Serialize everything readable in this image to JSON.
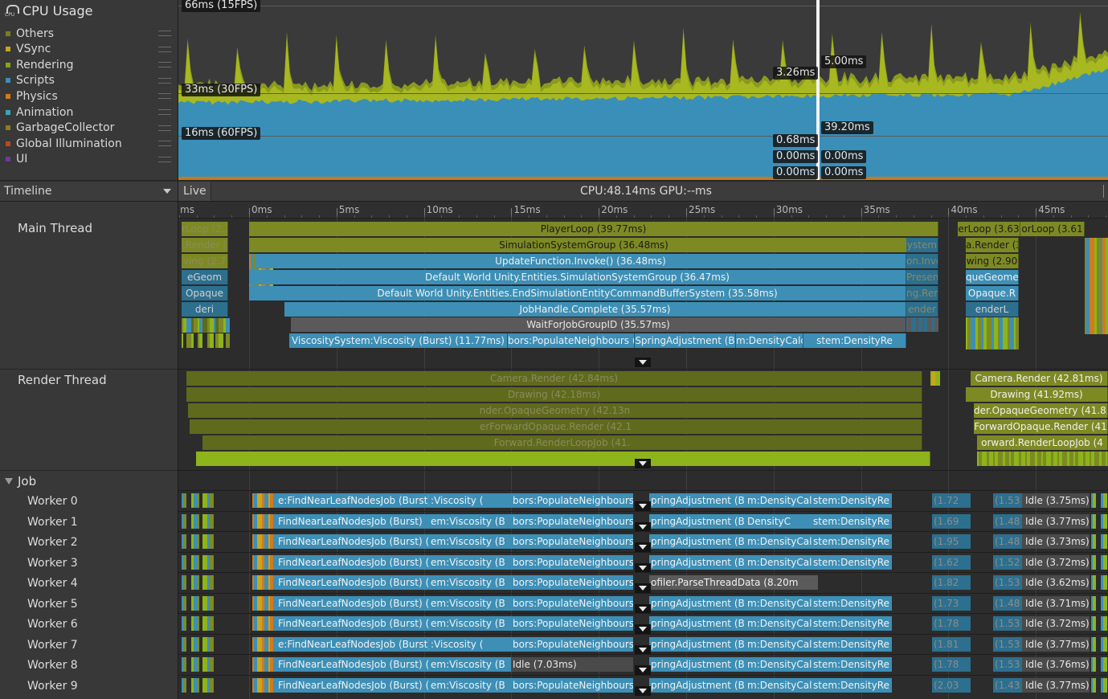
{
  "legend": {
    "title": "CPU Usage",
    "items": [
      {
        "label": "Others",
        "color": "#7b7f1e"
      },
      {
        "label": "VSync",
        "color": "#c9a51c"
      },
      {
        "label": "Rendering",
        "color": "#82a61a"
      },
      {
        "label": "Scripts",
        "color": "#3a8fb8"
      },
      {
        "label": "Physics",
        "color": "#d27a1c"
      },
      {
        "label": "Animation",
        "color": "#3aa5b8"
      },
      {
        "label": "GarbageCollector",
        "color": "#8a7e20"
      },
      {
        "label": "Global Illumination",
        "color": "#b84a1c"
      },
      {
        "label": "UI",
        "color": "#6a3aa0"
      }
    ]
  },
  "chart": {
    "line_66": "66ms (15FPS)",
    "line_33": "33ms (30FPS)",
    "line_16": "16ms (60FPS)",
    "markers": [
      "3.26ms",
      "5.00ms",
      "39.20ms",
      "0.68ms",
      "0.00ms",
      "0.00ms",
      "0.00ms",
      "0.00ms"
    ]
  },
  "toolbar": {
    "view_mode": "Timeline",
    "live": "Live",
    "cpu_gpu": "CPU:48.14ms   GPU:--ms"
  },
  "ruler": {
    "labels": [
      "ms",
      "0ms",
      "5ms",
      "10ms",
      "15ms",
      "20ms",
      "25ms",
      "30ms",
      "35ms",
      "40ms",
      "45ms"
    ]
  },
  "threads": {
    "main": "Main Thread",
    "render": "Render Thread",
    "job": "Job",
    "workers": [
      "Worker 0",
      "Worker 1",
      "Worker 2",
      "Worker 3",
      "Worker 4",
      "Worker 5",
      "Worker 6",
      "Worker 7",
      "Worker 8",
      "Worker 9"
    ]
  },
  "main_blocks": {
    "left": [
      "rLoop (2.7",
      ".Render (",
      "ving (2.7",
      "eGeom",
      "Opaque",
      "deri"
    ],
    "center": [
      "PlayerLoop (39.77ms)",
      "SimulationSystemGroup (36.48ms)",
      "UpdateFunction.Invoke() (36.48ms)",
      "Default World Unity.Entities.SimulationSystemGroup (36.47ms)",
      "Default World Unity.Entities.EndSimulationEntityCommandBufferSystem (35.58ms)",
      "JobHandle.Complete (35.57ms)",
      "WaitForJobGroupID (35.57ms)"
    ],
    "row8": [
      "ViscositySystem:Viscosity (Burst) (11.77ms)",
      "bors:PopulateNeighbours (",
      "SpringAdjustment (B",
      "m:DensityCalc",
      "stem:DensityRe"
    ],
    "mid_right": [
      "ystem",
      "on.Invo",
      "Presen",
      "ng.Ren",
      "ender"
    ],
    "right1": [
      "erLoop (3.63",
      "orLoop (3.61"
    ],
    "right": [
      "a.Render (3.5",
      "wing (2.90",
      "queGeome",
      "Opaque.R",
      "enderL"
    ]
  },
  "render_blocks": {
    "left": [
      "Camera.Render (42.84ms)",
      "Drawing (42.18ms)",
      "nder.OpaqueGeometry (42.13n",
      "erForwardOpaque.Render (42.1",
      "Forward.RenderLoopJob (41."
    ],
    "right": [
      "Camera.Render (42.81ms)",
      "Drawing (41.92ms)",
      "der.OpaqueGeometry (41.83",
      "ForwardOpaque.Render (41",
      "orward.RenderLoopJob (4"
    ]
  },
  "worker_rows": [
    {
      "a": "e:FindNearLeafNodesJob (Burst) (9.1",
      "b": ":Viscosity (",
      "c": "bors:PopulateNeighbours (",
      "d": "pringAdjustment (B",
      "e": "m:DensityCalc",
      "f": "stem:DensityRe",
      "g": "(1.72",
      "h": "(1.53",
      "idle": "Idle (3.75ms)"
    },
    {
      "a": "FindNearLeafNodesJob (Burst)",
      "b": "em:Viscosity (B",
      "c": "bors:PopulateNeighbours (",
      "d": "pringAdjustment (B",
      "e": "DensityC",
      "f": "stem:DensityRe",
      "g": "(1.69",
      "h": "(1.48",
      "idle": "Idle (3.77ms)"
    },
    {
      "a": "FindNearLeafNodesJob (Burst) (",
      "b": "em:Viscosity (B",
      "c": "bors:PopulateNeighbours (",
      "d": "pringAdjustment (B",
      "e": "m:DensityCalc",
      "f": "stem:DensityRe",
      "g": "(1.95",
      "h": "(1.48",
      "idle": "Idle (3.73ms)"
    },
    {
      "a": "FindNearLeafNodesJob (Burst) (",
      "b": "em:Viscosity (B",
      "c": "bors:PopulateNeighbours (",
      "d": "pringAdjustment (B",
      "e": "m:DensityCalc",
      "f": "stem:DensityRe",
      "g": "(1.62",
      "h": "(1.52",
      "idle": "Idle (3.72ms)"
    },
    {
      "a": "FindNearLeafNodesJob (Burst) (",
      "b": "em:Viscosity (B",
      "c": "bors:PopulateNeighbours (",
      "d": "ofiler.ParseThreadData (8.20m",
      "e": "",
      "f": "",
      "g": "(1.82",
      "h": "(1.53",
      "idle": "Idle (3.62ms)"
    },
    {
      "a": "FindNearLeafNodesJob (Burst) (",
      "b": "em:Viscosity (B",
      "c": "bors:PopulateNeighbours (",
      "d": "pringAdjustment (B",
      "e": "m:DensityCalc",
      "f": "stem:DensityRe",
      "g": "(1.73",
      "h": "(1.48",
      "idle": "Idle (3.71ms)"
    },
    {
      "a": "FindNearLeafNodesJob (Burst) (",
      "b": "em:Viscosity (B",
      "c": "bors:PopulateNeighbours (",
      "d": "pringAdjustment (B",
      "e": "m:DensityCalc",
      "f": "stem:DensityRe",
      "g": "(1.78",
      "h": "(1.53",
      "idle": "Idle (3.72ms)"
    },
    {
      "a": "e:FindNearLeafNodesJob (Burst) (9.1",
      "b": ":Viscosity (",
      "c": "bors:PopulateNeighbours (",
      "d": "pringAdjustment (B",
      "e": "m:DensityCalc",
      "f": "stem:DensityRe",
      "g": "(1.81",
      "h": "(1.53",
      "idle": "Idle (3.77ms)"
    },
    {
      "a": "FindNearLeafNodesJob (Burst) (",
      "b": "em:Viscosity (B",
      "c": "Idle (7.03ms)",
      "d": "pringAdjustment (B",
      "e": "m:DensityCalc",
      "f": "stem:DensityRe",
      "g": "(1.78",
      "h": "(1.53",
      "idle": "Idle (3.76ms)"
    },
    {
      "a": "FindNearLeafNodesJob (Burst) (",
      "b": "em:Viscosity (B",
      "c": "bors:PopulateNeighbours (",
      "d": "pringAdjustment (B",
      "e": "m:DensityCalc",
      "f": "stem:DensityRe",
      "g": "(2.03",
      "h": "(1.43",
      "idle": "Idle (3.77ms)"
    }
  ]
}
